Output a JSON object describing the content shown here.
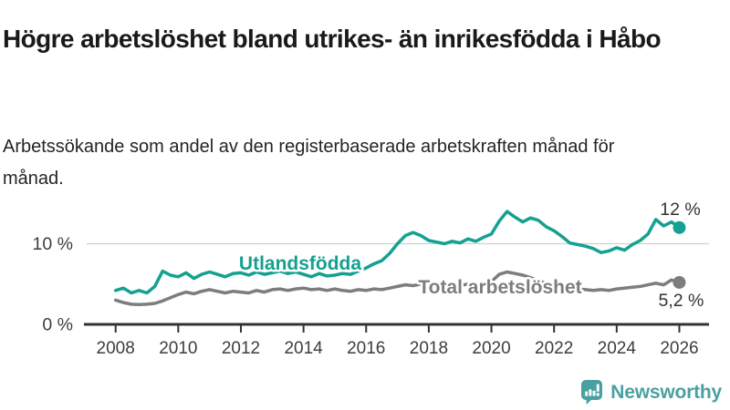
{
  "header": {
    "title": "Högre arbetslöshet bland utrikes- än inrikesfödda i Håbo",
    "subtitle": "Arbetssökande som andel av den registerbaserade arbetskraften månad för månad."
  },
  "chart_data": {
    "type": "line",
    "title": "Högre arbetslöshet bland utrikes- än inrikesfödda i Håbo",
    "subtitle": "Arbetssökande som andel av den registerbaserade arbetskraften månad för månad.",
    "unit": "%",
    "x_axis": {
      "ticks": [
        2008,
        2010,
        2012,
        2014,
        2016,
        2018,
        2020,
        2022,
        2024,
        2026
      ],
      "range": [
        2007.0,
        2027.0
      ],
      "grid": false
    },
    "y_axis": {
      "ticks": [
        {
          "value": 0,
          "label": "0 %"
        },
        {
          "value": 10,
          "label": "10 %"
        }
      ],
      "range": [
        0,
        17
      ],
      "grid": true
    },
    "colors": {
      "foreign_born": "#14a191",
      "total": "#7d7d7d",
      "axis": "#333333",
      "grid": "#d0d0d0",
      "tick_label": "#3d3d3d",
      "value_label": "#333333"
    },
    "series": [
      {
        "name": "Utlandsfödda",
        "color": "#14a191",
        "end_label": "12 %",
        "end_value": 12.0,
        "points": [
          [
            2008.0,
            4.2
          ],
          [
            2008.25,
            4.5
          ],
          [
            2008.5,
            3.9
          ],
          [
            2008.75,
            4.2
          ],
          [
            2009.0,
            3.9
          ],
          [
            2009.25,
            4.7
          ],
          [
            2009.5,
            6.6
          ],
          [
            2009.75,
            6.1
          ],
          [
            2010.0,
            5.9
          ],
          [
            2010.25,
            6.4
          ],
          [
            2010.5,
            5.7
          ],
          [
            2010.75,
            6.2
          ],
          [
            2011.0,
            6.5
          ],
          [
            2011.25,
            6.2
          ],
          [
            2011.5,
            5.9
          ],
          [
            2011.75,
            6.3
          ],
          [
            2012.0,
            6.4
          ],
          [
            2012.25,
            6.1
          ],
          [
            2012.5,
            6.5
          ],
          [
            2012.75,
            6.2
          ],
          [
            2013.0,
            6.4
          ],
          [
            2013.25,
            6.6
          ],
          [
            2013.5,
            6.3
          ],
          [
            2013.75,
            6.5
          ],
          [
            2014.0,
            6.2
          ],
          [
            2014.25,
            5.9
          ],
          [
            2014.5,
            6.3
          ],
          [
            2014.75,
            6.0
          ],
          [
            2015.0,
            6.1
          ],
          [
            2015.25,
            6.3
          ],
          [
            2015.5,
            6.2
          ],
          [
            2015.75,
            6.6
          ],
          [
            2016.0,
            7.0
          ],
          [
            2016.25,
            7.5
          ],
          [
            2016.5,
            7.9
          ],
          [
            2016.75,
            8.8
          ],
          [
            2017.0,
            10.0
          ],
          [
            2017.25,
            11.0
          ],
          [
            2017.5,
            11.4
          ],
          [
            2017.75,
            11.0
          ],
          [
            2018.0,
            10.4
          ],
          [
            2018.25,
            10.2
          ],
          [
            2018.5,
            10.0
          ],
          [
            2018.75,
            10.3
          ],
          [
            2019.0,
            10.1
          ],
          [
            2019.25,
            10.6
          ],
          [
            2019.5,
            10.3
          ],
          [
            2019.75,
            10.8
          ],
          [
            2020.0,
            11.2
          ],
          [
            2020.25,
            12.8
          ],
          [
            2020.5,
            14.0
          ],
          [
            2020.75,
            13.3
          ],
          [
            2021.0,
            12.7
          ],
          [
            2021.25,
            13.2
          ],
          [
            2021.5,
            12.9
          ],
          [
            2021.75,
            12.1
          ],
          [
            2022.0,
            11.6
          ],
          [
            2022.25,
            10.9
          ],
          [
            2022.5,
            10.1
          ],
          [
            2022.75,
            9.9
          ],
          [
            2023.0,
            9.7
          ],
          [
            2023.25,
            9.4
          ],
          [
            2023.5,
            8.9
          ],
          [
            2023.75,
            9.1
          ],
          [
            2024.0,
            9.5
          ],
          [
            2024.25,
            9.2
          ],
          [
            2024.5,
            9.9
          ],
          [
            2024.75,
            10.4
          ],
          [
            2025.0,
            11.2
          ],
          [
            2025.25,
            13.0
          ],
          [
            2025.5,
            12.2
          ],
          [
            2025.75,
            12.7
          ],
          [
            2026.0,
            12.0
          ]
        ]
      },
      {
        "name": "Total arbetslöshet",
        "color": "#7d7d7d",
        "end_label": "5,2 %",
        "end_value": 5.2,
        "points": [
          [
            2008.0,
            3.0
          ],
          [
            2008.25,
            2.7
          ],
          [
            2008.5,
            2.5
          ],
          [
            2008.75,
            2.45
          ],
          [
            2009.0,
            2.5
          ],
          [
            2009.25,
            2.6
          ],
          [
            2009.5,
            2.9
          ],
          [
            2009.75,
            3.3
          ],
          [
            2010.0,
            3.7
          ],
          [
            2010.25,
            4.0
          ],
          [
            2010.5,
            3.8
          ],
          [
            2010.75,
            4.1
          ],
          [
            2011.0,
            4.3
          ],
          [
            2011.25,
            4.1
          ],
          [
            2011.5,
            3.9
          ],
          [
            2011.75,
            4.1
          ],
          [
            2012.0,
            4.0
          ],
          [
            2012.25,
            3.9
          ],
          [
            2012.5,
            4.2
          ],
          [
            2012.75,
            4.0
          ],
          [
            2013.0,
            4.3
          ],
          [
            2013.25,
            4.4
          ],
          [
            2013.5,
            4.2
          ],
          [
            2013.75,
            4.4
          ],
          [
            2014.0,
            4.5
          ],
          [
            2014.25,
            4.3
          ],
          [
            2014.5,
            4.4
          ],
          [
            2014.75,
            4.2
          ],
          [
            2015.0,
            4.4
          ],
          [
            2015.25,
            4.2
          ],
          [
            2015.5,
            4.1
          ],
          [
            2015.75,
            4.3
          ],
          [
            2016.0,
            4.2
          ],
          [
            2016.25,
            4.4
          ],
          [
            2016.5,
            4.3
          ],
          [
            2016.75,
            4.5
          ],
          [
            2017.0,
            4.7
          ],
          [
            2017.25,
            4.9
          ],
          [
            2017.5,
            4.8
          ],
          [
            2017.75,
            5.0
          ],
          [
            2018.0,
            4.9
          ],
          [
            2018.25,
            5.1
          ],
          [
            2018.5,
            4.9
          ],
          [
            2018.75,
            5.0
          ],
          [
            2019.0,
            4.8
          ],
          [
            2019.25,
            5.0
          ],
          [
            2019.5,
            4.9
          ],
          [
            2019.75,
            5.1
          ],
          [
            2020.0,
            5.3
          ],
          [
            2020.25,
            6.2
          ],
          [
            2020.5,
            6.5
          ],
          [
            2020.75,
            6.3
          ],
          [
            2021.0,
            6.1
          ],
          [
            2021.25,
            5.8
          ],
          [
            2021.5,
            5.4
          ],
          [
            2021.75,
            5.1
          ],
          [
            2022.0,
            4.8
          ],
          [
            2022.25,
            4.6
          ],
          [
            2022.5,
            4.5
          ],
          [
            2022.75,
            4.4
          ],
          [
            2023.0,
            4.3
          ],
          [
            2023.25,
            4.2
          ],
          [
            2023.5,
            4.3
          ],
          [
            2023.75,
            4.2
          ],
          [
            2024.0,
            4.4
          ],
          [
            2024.25,
            4.5
          ],
          [
            2024.5,
            4.6
          ],
          [
            2024.75,
            4.7
          ],
          [
            2025.0,
            4.9
          ],
          [
            2025.25,
            5.1
          ],
          [
            2025.5,
            4.9
          ],
          [
            2025.75,
            5.5
          ],
          [
            2026.0,
            5.2
          ]
        ]
      }
    ],
    "legend_position": "inline-labels"
  },
  "footer": {
    "brand": "Newsworthy",
    "brand_color": "#4aa0a0",
    "logo_icon": "newsworthy-speech-bubble-bar-chart-icon"
  }
}
